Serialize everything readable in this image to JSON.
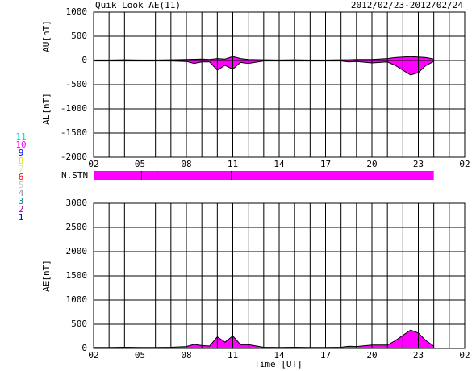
{
  "chart_data": [
    {
      "type": "area",
      "title": "Quik Look AE(11)",
      "subtitle": "2012/02/23-2012/02/24",
      "ylabels": [
        "AU[nT]",
        "AL[nT]"
      ],
      "x": [
        2,
        3,
        4,
        5,
        6,
        7,
        8,
        8.5,
        9,
        9.5,
        10,
        10.5,
        11,
        11.5,
        12,
        13,
        14,
        15,
        16,
        17,
        18,
        18.5,
        19,
        20,
        21,
        21.5,
        22,
        22.5,
        23,
        23.5,
        24
      ],
      "series": [
        {
          "values": [
            10,
            10,
            15,
            10,
            10,
            15,
            20,
            25,
            30,
            20,
            40,
            30,
            80,
            40,
            20,
            15,
            10,
            15,
            10,
            10,
            15,
            15,
            20,
            20,
            40,
            60,
            70,
            80,
            70,
            60,
            30
          ]
        },
        {
          "values": [
            -10,
            -10,
            -10,
            -10,
            -10,
            -10,
            -20,
            -60,
            -30,
            -30,
            -200,
            -100,
            -180,
            -40,
            -60,
            -10,
            -10,
            -10,
            -10,
            -10,
            -10,
            -30,
            -20,
            -50,
            -30,
            -100,
            -200,
            -300,
            -250,
            -100,
            -20
          ]
        }
      ],
      "fill": "#ff00ff",
      "line_color": "#000000",
      "xlim": [
        2,
        26
      ],
      "xticks": [
        {
          "value": 2,
          "label": "02"
        },
        {
          "value": 5,
          "label": "05"
        },
        {
          "value": 8,
          "label": "08"
        },
        11,
        14,
        17,
        20,
        23,
        {
          "value": 26,
          "label": "02"
        }
      ],
      "ylim": [
        -2000,
        1000
      ],
      "yticks": [
        1000,
        500,
        0,
        -500,
        -1000,
        -1500,
        -2000
      ],
      "x_grid_interval": 1,
      "grid": true
    },
    {
      "type": "band",
      "label": "N.STN",
      "x": [
        2,
        24
      ],
      "color": "#ff00ff",
      "marks": [
        5.1,
        6.1,
        10.9
      ],
      "xlim": [
        2,
        26
      ],
      "legend": [
        {
          "label": "11",
          "color": "#00d8d8"
        },
        {
          "label": "10",
          "color": "#ff00ff"
        },
        {
          "label": "9",
          "color": "#0000ff"
        },
        {
          "label": "8",
          "color": "#e8d800"
        },
        {
          "label": "7",
          "color": "#c8f0a0"
        },
        {
          "label": "6",
          "color": "#ff0000"
        },
        {
          "label": "5",
          "color": "#c8c8c8"
        },
        {
          "label": "4",
          "color": "#909090"
        },
        {
          "label": "3",
          "color": "#008080"
        },
        {
          "label": "2",
          "color": "#a000a0"
        },
        {
          "label": "1",
          "color": "#0000c0"
        }
      ]
    },
    {
      "type": "area",
      "ylabels": [
        "AE[nT]"
      ],
      "xlabel": "Time [UT]",
      "x": [
        2,
        3,
        4,
        5,
        6,
        7,
        8,
        8.5,
        9,
        9.5,
        10,
        10.5,
        11,
        11.5,
        12,
        13,
        14,
        15,
        16,
        17,
        18,
        18.5,
        19,
        20,
        21,
        21.5,
        22,
        22.5,
        23,
        23.5,
        24
      ],
      "series": [
        {
          "values": [
            20,
            20,
            25,
            20,
            20,
            25,
            40,
            85,
            60,
            50,
            240,
            130,
            260,
            80,
            80,
            25,
            20,
            25,
            20,
            20,
            25,
            45,
            40,
            70,
            70,
            160,
            270,
            380,
            320,
            160,
            50
          ]
        }
      ],
      "fill": "#ff00ff",
      "line_color": "#000000",
      "xlim": [
        2,
        26
      ],
      "xticks": [
        {
          "value": 2,
          "label": "02"
        },
        {
          "value": 5,
          "label": "05"
        },
        {
          "value": 8,
          "label": "08"
        },
        11,
        14,
        17,
        20,
        23,
        {
          "value": 26,
          "label": "02"
        }
      ],
      "ylim": [
        0,
        3000
      ],
      "yticks": [
        0,
        500,
        1000,
        1500,
        2000,
        2500,
        3000
      ],
      "x_grid_interval": 1,
      "grid": true
    }
  ]
}
